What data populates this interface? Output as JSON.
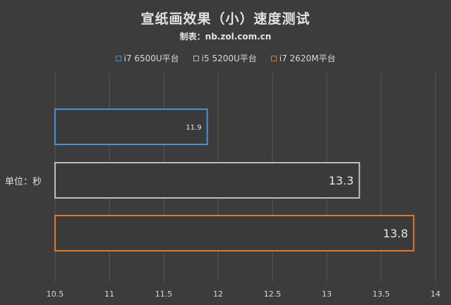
{
  "title": "宣纸画效果（小）速度测试",
  "subtitle": "制表：nb.zol.com.cn",
  "unit_label": "单位：秒",
  "colors": {
    "background": "#3c3c3c",
    "grid": "#575757",
    "series": [
      "#4a90d9",
      "#bdbdbd",
      "#e0782a"
    ]
  },
  "chart_data": {
    "type": "bar",
    "orientation": "horizontal",
    "title": "宣纸画效果（小）速度测试",
    "subtitle": "制表：nb.zol.com.cn",
    "categories": [
      "i7 6500U平台",
      "i5 5200U平台",
      "i7 2620M平台"
    ],
    "values": [
      11.9,
      13.3,
      13.8
    ],
    "value_labels": [
      "11.9",
      "13.3",
      "13.8"
    ],
    "xlim": [
      10.5,
      14
    ],
    "x_ticks": [
      10.5,
      11,
      11.5,
      12,
      12.5,
      13,
      13.5,
      14
    ],
    "x_tick_labels": [
      "10.5",
      "11",
      "11.5",
      "12",
      "12.5",
      "13",
      "13.5",
      "14"
    ],
    "ylabel": "单位：秒",
    "grid": true,
    "legend": {
      "placement": "top-center",
      "entries": [
        "i7 6500U平台",
        "i5 5200U平台",
        "i7 2620M平台"
      ]
    }
  }
}
